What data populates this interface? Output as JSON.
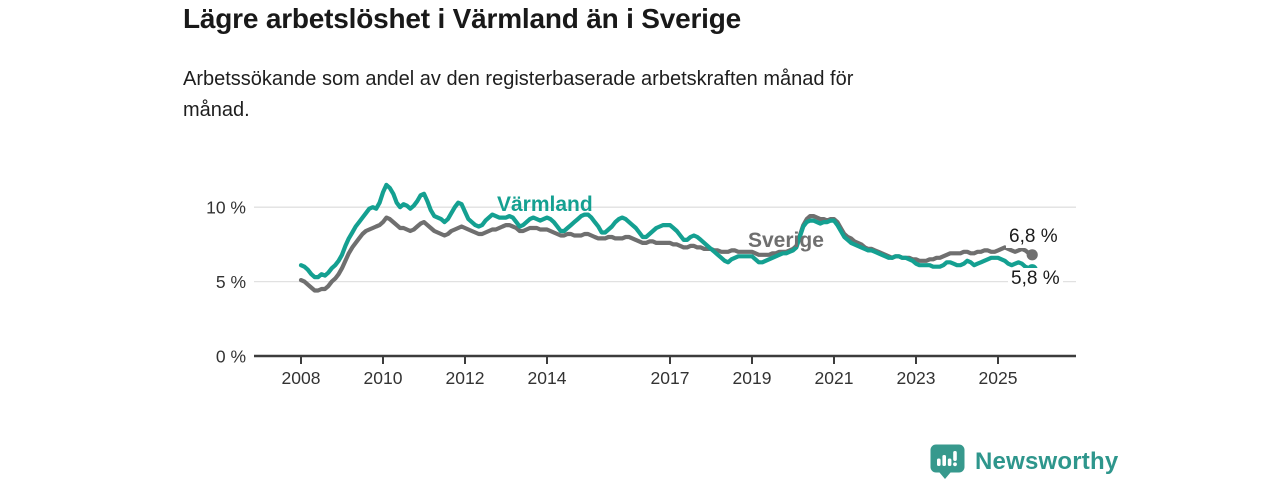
{
  "header": {
    "title": "Lägre arbetslöshet i Värmland än i Sverige",
    "subtitle": "Arbetssökande som andel av den registerbaserade arbetskraften månad för månad."
  },
  "chart_data": {
    "type": "line",
    "title": "Lägre arbetslöshet i Värmland än i Sverige",
    "ylabel": "",
    "xlabel": "",
    "x_unit": "month",
    "x_start": "2008-01",
    "x_end": "2025-11",
    "ylim": [
      0,
      12
    ],
    "grid": "horizontal gridlines at 5 % and 10 %",
    "legend_position": "labels inline next to lines",
    "yticks": [
      {
        "value": 0,
        "label": "0 %"
      },
      {
        "value": 5,
        "label": "5 %"
      },
      {
        "value": 10,
        "label": "10 %"
      }
    ],
    "xticks": [
      {
        "year": 2008,
        "label": "2008"
      },
      {
        "year": 2010,
        "label": "2010"
      },
      {
        "year": 2012,
        "label": "2012"
      },
      {
        "year": 2014,
        "label": "2014"
      },
      {
        "year": 2017,
        "label": "2017"
      },
      {
        "year": 2019,
        "label": "2019"
      },
      {
        "year": 2021,
        "label": "2021"
      },
      {
        "year": 2023,
        "label": "2023"
      },
      {
        "year": 2025,
        "label": "2025"
      }
    ],
    "series": [
      {
        "name": "Sverige",
        "color": "#6f6f6f",
        "end_value": 6.8,
        "end_label": "6,8 %",
        "values": [
          5.1,
          5.0,
          4.8,
          4.6,
          4.4,
          4.4,
          4.5,
          4.5,
          4.7,
          5.0,
          5.2,
          5.5,
          5.9,
          6.4,
          6.9,
          7.3,
          7.6,
          7.9,
          8.2,
          8.4,
          8.5,
          8.6,
          8.7,
          8.8,
          9.0,
          9.3,
          9.2,
          9.0,
          8.8,
          8.6,
          8.6,
          8.5,
          8.4,
          8.5,
          8.7,
          8.9,
          9.0,
          8.8,
          8.6,
          8.4,
          8.3,
          8.2,
          8.1,
          8.2,
          8.4,
          8.5,
          8.6,
          8.7,
          8.6,
          8.5,
          8.4,
          8.3,
          8.2,
          8.2,
          8.3,
          8.4,
          8.5,
          8.5,
          8.6,
          8.7,
          8.8,
          8.8,
          8.7,
          8.6,
          8.4,
          8.4,
          8.5,
          8.6,
          8.6,
          8.6,
          8.5,
          8.5,
          8.5,
          8.4,
          8.3,
          8.2,
          8.1,
          8.1,
          8.2,
          8.2,
          8.1,
          8.1,
          8.1,
          8.2,
          8.2,
          8.1,
          8.0,
          7.9,
          7.9,
          7.9,
          8.0,
          8.0,
          7.9,
          7.9,
          7.9,
          8.0,
          8.0,
          7.9,
          7.8,
          7.7,
          7.6,
          7.6,
          7.7,
          7.7,
          7.6,
          7.6,
          7.6,
          7.6,
          7.6,
          7.5,
          7.5,
          7.4,
          7.3,
          7.3,
          7.4,
          7.4,
          7.3,
          7.3,
          7.2,
          7.2,
          7.2,
          7.1,
          7.1,
          7.0,
          7.0,
          7.0,
          7.1,
          7.1,
          7.0,
          7.0,
          7.0,
          7.0,
          7.0,
          6.9,
          6.8,
          6.8,
          6.8,
          6.8,
          6.9,
          6.9,
          7.0,
          7.0,
          7.0,
          7.1,
          7.2,
          7.4,
          8.1,
          8.8,
          9.2,
          9.4,
          9.4,
          9.3,
          9.2,
          9.2,
          9.1,
          9.2,
          9.2,
          9.0,
          8.6,
          8.2,
          8.0,
          7.9,
          7.7,
          7.6,
          7.5,
          7.3,
          7.2,
          7.2,
          7.1,
          7.0,
          6.9,
          6.8,
          6.7,
          6.6,
          6.7,
          6.7,
          6.6,
          6.6,
          6.6,
          6.5,
          6.5,
          6.4,
          6.4,
          6.4,
          6.5,
          6.5,
          6.6,
          6.6,
          6.7,
          6.8,
          6.9,
          6.9,
          6.9,
          6.9,
          7.0,
          7.0,
          6.9,
          6.9,
          7.0,
          7.0,
          7.1,
          7.1,
          7.0,
          7.0,
          7.1,
          7.2,
          7.3,
          7.2,
          7.1,
          7.0,
          7.1,
          7.2,
          7.1,
          6.9,
          6.8
        ]
      },
      {
        "name": "Värmland",
        "color": "#14a091",
        "end_value": 5.8,
        "end_label": "5,8 %",
        "values": [
          6.1,
          6.0,
          5.8,
          5.5,
          5.3,
          5.3,
          5.5,
          5.4,
          5.6,
          5.9,
          6.1,
          6.4,
          6.8,
          7.4,
          7.9,
          8.3,
          8.7,
          9.0,
          9.3,
          9.6,
          9.9,
          10.0,
          9.9,
          10.3,
          11.0,
          11.5,
          11.3,
          10.9,
          10.3,
          10.0,
          10.2,
          10.1,
          9.9,
          10.1,
          10.4,
          10.8,
          10.9,
          10.4,
          9.8,
          9.4,
          9.3,
          9.2,
          9.0,
          9.2,
          9.6,
          10.0,
          10.3,
          10.2,
          9.7,
          9.2,
          9.0,
          8.8,
          8.7,
          8.8,
          9.1,
          9.3,
          9.5,
          9.4,
          9.3,
          9.3,
          9.3,
          9.4,
          9.3,
          9.0,
          8.7,
          8.8,
          9.0,
          9.2,
          9.3,
          9.2,
          9.1,
          9.2,
          9.3,
          9.2,
          9.0,
          8.7,
          8.4,
          8.4,
          8.6,
          8.8,
          9.0,
          9.2,
          9.4,
          9.5,
          9.5,
          9.3,
          9.0,
          8.7,
          8.3,
          8.3,
          8.5,
          8.7,
          9.0,
          9.2,
          9.3,
          9.2,
          9.0,
          8.8,
          8.6,
          8.3,
          8.0,
          8.0,
          8.2,
          8.4,
          8.6,
          8.7,
          8.8,
          8.8,
          8.8,
          8.6,
          8.4,
          8.1,
          7.8,
          7.8,
          8.0,
          8.1,
          8.0,
          7.8,
          7.6,
          7.4,
          7.2,
          7.0,
          6.8,
          6.6,
          6.4,
          6.3,
          6.5,
          6.6,
          6.7,
          6.7,
          6.7,
          6.7,
          6.7,
          6.5,
          6.3,
          6.3,
          6.4,
          6.5,
          6.6,
          6.7,
          6.8,
          6.9,
          6.9,
          7.0,
          7.1,
          7.3,
          8.0,
          8.7,
          9.0,
          9.1,
          9.1,
          9.0,
          8.9,
          9.0,
          9.0,
          9.1,
          9.1,
          8.8,
          8.4,
          8.0,
          7.8,
          7.6,
          7.5,
          7.4,
          7.3,
          7.2,
          7.1,
          7.1,
          7.0,
          6.9,
          6.8,
          6.7,
          6.6,
          6.6,
          6.7,
          6.7,
          6.6,
          6.6,
          6.5,
          6.4,
          6.2,
          6.1,
          6.1,
          6.1,
          6.1,
          6.0,
          6.0,
          6.0,
          6.1,
          6.3,
          6.3,
          6.2,
          6.1,
          6.1,
          6.2,
          6.4,
          6.3,
          6.1,
          6.2,
          6.3,
          6.4,
          6.5,
          6.6,
          6.6,
          6.6,
          6.5,
          6.4,
          6.2,
          6.1,
          6.2,
          6.3,
          6.2,
          6.0,
          5.9,
          5.8
        ]
      }
    ]
  },
  "footer": {
    "brand": "Newsworthy",
    "logo_color": "#37998d",
    "brand_text_color": "#2e968c"
  },
  "style_colors": {
    "varmland_line": "#14a091",
    "sverige_line": "#6f6f6f",
    "gridline": "#e1e1e1",
    "axis": "#3c3c3c",
    "text": "#1a1a1a"
  }
}
